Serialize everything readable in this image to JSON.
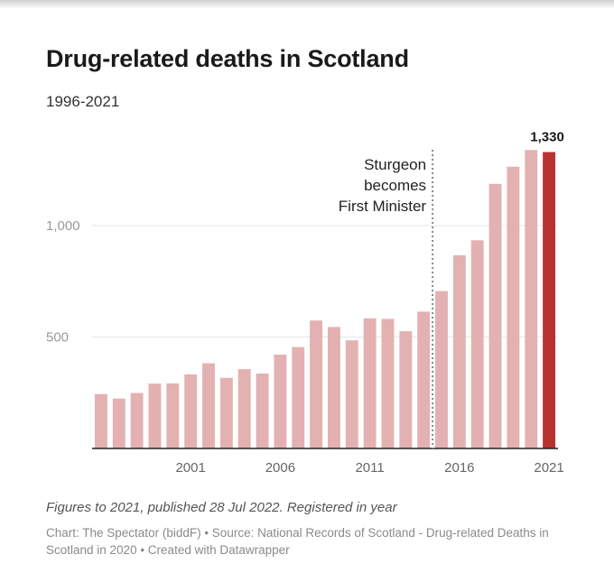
{
  "header": {
    "title": "Drug-related deaths in Scotland",
    "subtitle": "1996-2021"
  },
  "footer": {
    "note": "Figures to 2021, published 28 Jul 2022. Registered in year",
    "credit": "Chart: The Spectator (biddF) • Source: National Records of Scotland - Drug-related Deaths in Scotland in 2020 • Created with Datawrapper"
  },
  "colors": {
    "bar": "#e3b1b1",
    "highlight_bar": "#b83230",
    "gridline": "#e6e6e6",
    "baseline": "#222222",
    "annotation_line": "#888888",
    "tick_label": "#999999",
    "year_label": "#666666"
  },
  "chart_data": {
    "type": "bar",
    "title": "Drug-related deaths in Scotland",
    "subtitle": "1996-2021",
    "categories": [
      1996,
      1997,
      1998,
      1999,
      2000,
      2001,
      2002,
      2003,
      2004,
      2005,
      2006,
      2007,
      2008,
      2009,
      2010,
      2011,
      2012,
      2013,
      2014,
      2015,
      2016,
      2017,
      2018,
      2019,
      2020,
      2021
    ],
    "values": [
      244,
      224,
      249,
      291,
      292,
      332,
      382,
      317,
      356,
      336,
      421,
      455,
      574,
      545,
      485,
      584,
      581,
      526,
      614,
      706,
      867,
      934,
      1187,
      1264,
      1339,
      1330
    ],
    "highlight": 2021,
    "ylim": [
      0,
      1400
    ],
    "yticks": [
      500,
      1000
    ],
    "ytick_labels": [
      "500",
      "1,000"
    ],
    "xticks": [
      2001,
      2006,
      2011,
      2016,
      2021
    ],
    "xtick_labels": [
      "2001",
      "2006",
      "2011",
      "2016",
      "2021"
    ],
    "value_label": {
      "category": 2021,
      "text": "1,330"
    },
    "annotation": {
      "position_between": [
        2014,
        2015
      ],
      "lines": [
        "Sturgeon",
        "becomes",
        "First Minister"
      ]
    },
    "grid": true,
    "legend": "none"
  }
}
